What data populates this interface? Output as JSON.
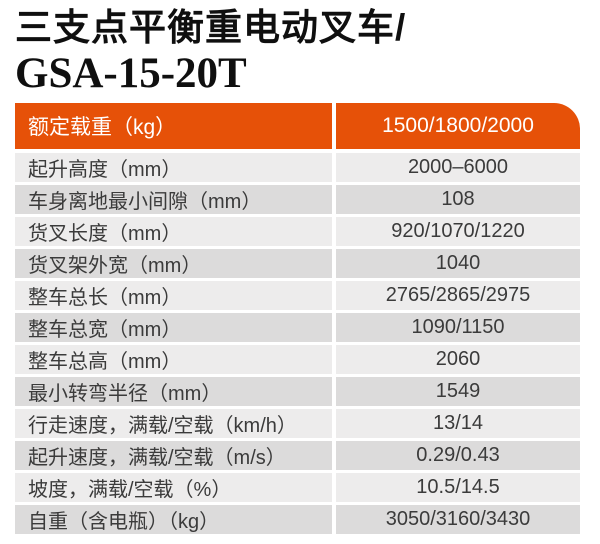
{
  "title": {
    "line1": "三支点平衡重电动叉车/",
    "line2": "GSA-15-20T"
  },
  "table": {
    "header": {
      "label": "额定载重（kg）",
      "value": "1500/1800/2000"
    },
    "rows": [
      {
        "label": "起升高度（mm）",
        "value": "2000–6000"
      },
      {
        "label": "车身离地最小间隙（mm）",
        "value": "108"
      },
      {
        "label": "货叉长度（mm）",
        "value": "920/1070/1220"
      },
      {
        "label": "货叉架外宽（mm）",
        "value": "1040"
      },
      {
        "label": "整车总长（mm）",
        "value": "2765/2865/2975"
      },
      {
        "label": "整车总宽（mm）",
        "value": "1090/1150"
      },
      {
        "label": "整车总高（mm）",
        "value": "2060"
      },
      {
        "label": "最小转弯半径（mm）",
        "value": "1549"
      },
      {
        "label": "行走速度，满载/空载（km/h）",
        "value": "13/14"
      },
      {
        "label": "起升速度，满载/空载（m/s）",
        "value": "0.29/0.43"
      },
      {
        "label": "坡度，满载/空载（%）",
        "value": "10.5/14.5"
      },
      {
        "label": "自重（含电瓶）（kg）",
        "value": "3050/3160/3430"
      }
    ]
  },
  "colors": {
    "header_bg": "#E65108",
    "row_light": "#EDECEC",
    "row_dark": "#DCDBDB",
    "header_text": "#FFFFFF",
    "row_text": "#3B3B3B"
  }
}
